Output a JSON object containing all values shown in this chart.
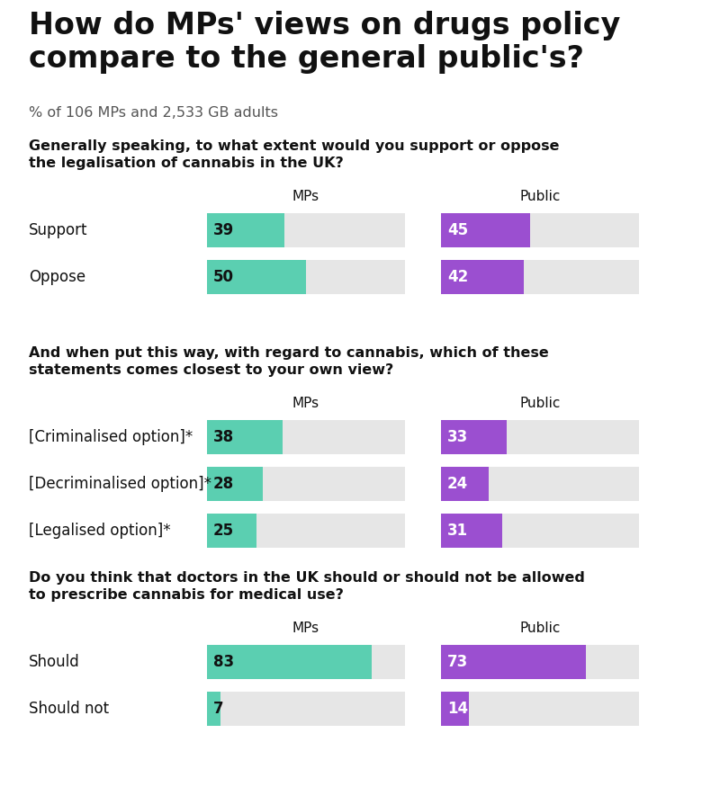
{
  "title": "How do MPs' views on drugs policy\ncompare to the general public's?",
  "subtitle": "% of 106 MPs and 2,533 GB adults",
  "bg_color": "#ffffff",
  "teal_color": "#5bcfb1",
  "purple_color": "#9b4fd0",
  "bar_bg_color": "#e6e6e6",
  "text_color": "#111111",
  "sections": [
    {
      "question": "Generally speaking, to what extent would you support or oppose\nthe legalisation of cannabis in the UK?",
      "rows": [
        {
          "label": "Support",
          "mp": 39,
          "public": 45
        },
        {
          "label": "Oppose",
          "mp": 50,
          "public": 42
        }
      ]
    },
    {
      "question": "And when put this way, with regard to cannabis, which of these\nstatements comes closest to your own view?",
      "rows": [
        {
          "label": "[Criminalised option]*",
          "mp": 38,
          "public": 33
        },
        {
          "label": "[Decriminalised option]*",
          "mp": 28,
          "public": 24
        },
        {
          "label": "[Legalised option]*",
          "mp": 25,
          "public": 31
        }
      ]
    },
    {
      "question": "Do you think that doctors in the UK should or should not be allowed\nto prescribe cannabis for medical use?",
      "rows": [
        {
          "label": "Should",
          "mp": 83,
          "public": 73
        },
        {
          "label": "Should not",
          "mp": 7,
          "public": 14
        }
      ]
    }
  ]
}
